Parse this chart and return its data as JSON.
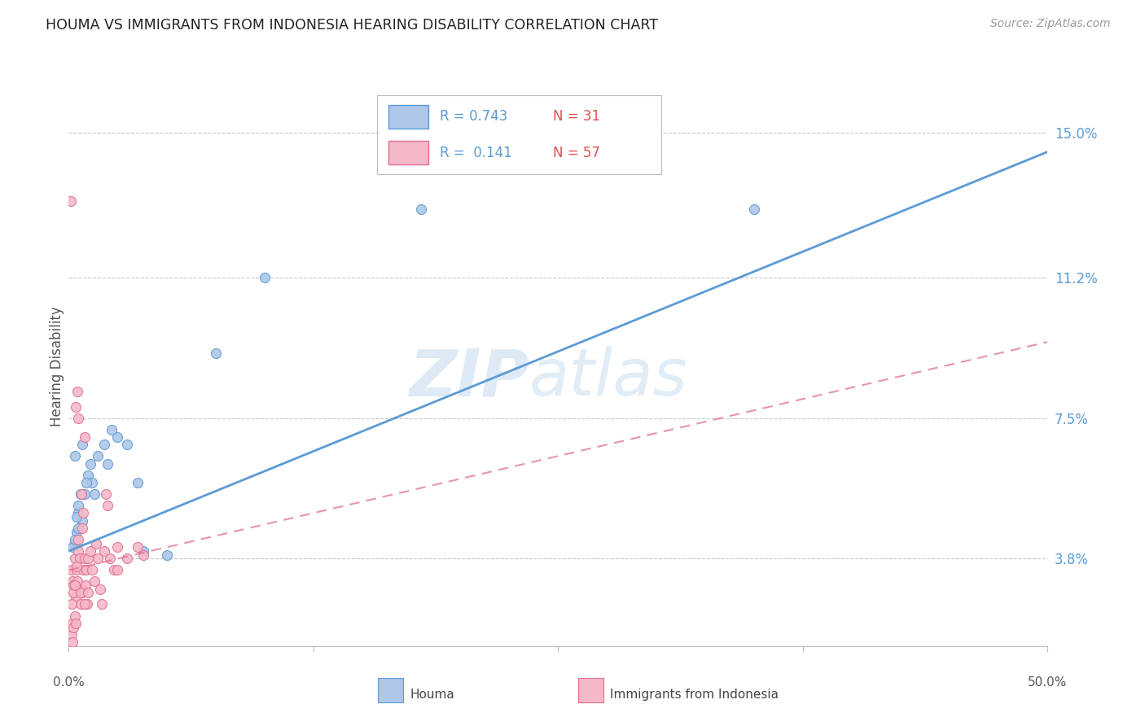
{
  "title": "HOUMA VS IMMIGRANTS FROM INDONESIA HEARING DISABILITY CORRELATION CHART",
  "source": "Source: ZipAtlas.com",
  "ylabel": "Hearing Disability",
  "yticks": [
    3.8,
    7.5,
    11.2,
    15.0
  ],
  "ytick_labels": [
    "3.8%",
    "7.5%",
    "11.2%",
    "15.0%"
  ],
  "xmin": 0.0,
  "xmax": 50.0,
  "ymin": 1.5,
  "ymax": 16.2,
  "houma_R": 0.743,
  "houma_N": 31,
  "indonesia_R": 0.141,
  "indonesia_N": 57,
  "houma_color": "#aec6e8",
  "indonesia_color": "#f5b8c8",
  "houma_line_color": "#5b9bd5",
  "indonesia_line_color": "#e07090",
  "legend_label1": "Houma",
  "legend_label2": "Immigrants from Indonesia",
  "houma_line_x0": 0.0,
  "houma_line_y0": 4.0,
  "houma_line_x1": 50.0,
  "houma_line_y1": 14.5,
  "indo_line_x0": 0.0,
  "indo_line_y0": 3.5,
  "indo_line_x1": 50.0,
  "indo_line_y1": 9.5,
  "houma_points": [
    [
      0.3,
      4.2
    ],
    [
      0.5,
      5.0
    ],
    [
      0.7,
      4.8
    ],
    [
      0.8,
      5.5
    ],
    [
      1.0,
      6.0
    ],
    [
      1.2,
      5.8
    ],
    [
      1.5,
      6.5
    ],
    [
      2.0,
      6.3
    ],
    [
      2.5,
      7.0
    ],
    [
      3.0,
      6.8
    ],
    [
      0.4,
      4.5
    ],
    [
      0.5,
      5.2
    ],
    [
      1.8,
      6.8
    ],
    [
      2.2,
      7.2
    ],
    [
      0.9,
      5.8
    ],
    [
      1.1,
      6.3
    ],
    [
      1.3,
      5.5
    ],
    [
      3.5,
      5.8
    ],
    [
      3.8,
      4.0
    ],
    [
      5.0,
      3.9
    ],
    [
      0.3,
      6.5
    ],
    [
      7.5,
      9.2
    ],
    [
      18.0,
      13.0
    ],
    [
      35.0,
      13.0
    ],
    [
      0.2,
      4.1
    ],
    [
      0.3,
      4.3
    ],
    [
      0.4,
      4.9
    ],
    [
      0.5,
      4.6
    ],
    [
      10.0,
      11.2
    ],
    [
      0.7,
      6.8
    ],
    [
      0.6,
      5.5
    ]
  ],
  "indonesia_points": [
    [
      0.15,
      3.5
    ],
    [
      0.2,
      3.2
    ],
    [
      0.25,
      3.1
    ],
    [
      0.3,
      3.8
    ],
    [
      0.35,
      2.8
    ],
    [
      0.4,
      3.5
    ],
    [
      0.45,
      3.2
    ],
    [
      0.5,
      4.0
    ],
    [
      0.55,
      3.8
    ],
    [
      0.6,
      2.6
    ],
    [
      0.65,
      3.0
    ],
    [
      0.7,
      2.9
    ],
    [
      0.75,
      3.5
    ],
    [
      0.8,
      3.8
    ],
    [
      0.85,
      3.1
    ],
    [
      0.9,
      3.5
    ],
    [
      0.95,
      2.6
    ],
    [
      1.0,
      3.8
    ],
    [
      1.1,
      4.0
    ],
    [
      1.2,
      3.5
    ],
    [
      1.3,
      3.2
    ],
    [
      1.4,
      4.2
    ],
    [
      1.5,
      3.8
    ],
    [
      1.6,
      3.0
    ],
    [
      1.7,
      2.6
    ],
    [
      1.8,
      4.0
    ],
    [
      2.0,
      5.2
    ],
    [
      2.5,
      4.1
    ],
    [
      3.0,
      3.8
    ],
    [
      0.5,
      7.5
    ],
    [
      0.8,
      7.0
    ],
    [
      0.45,
      8.2
    ],
    [
      0.35,
      7.8
    ],
    [
      0.2,
      2.1
    ],
    [
      0.3,
      2.3
    ],
    [
      0.15,
      2.6
    ],
    [
      0.25,
      2.9
    ],
    [
      2.1,
      3.8
    ],
    [
      2.3,
      3.5
    ],
    [
      1.9,
      5.5
    ],
    [
      3.5,
      4.1
    ],
    [
      3.8,
      3.9
    ],
    [
      0.65,
      5.5
    ],
    [
      0.75,
      5.0
    ],
    [
      0.15,
      1.8
    ],
    [
      0.25,
      2.0
    ],
    [
      0.2,
      1.6
    ],
    [
      0.35,
      2.1
    ],
    [
      0.12,
      13.2
    ],
    [
      0.4,
      3.6
    ],
    [
      0.5,
      4.3
    ],
    [
      0.6,
      2.9
    ],
    [
      0.8,
      2.6
    ],
    [
      1.0,
      2.9
    ],
    [
      0.3,
      3.1
    ],
    [
      0.7,
      4.6
    ],
    [
      2.5,
      3.5
    ]
  ]
}
